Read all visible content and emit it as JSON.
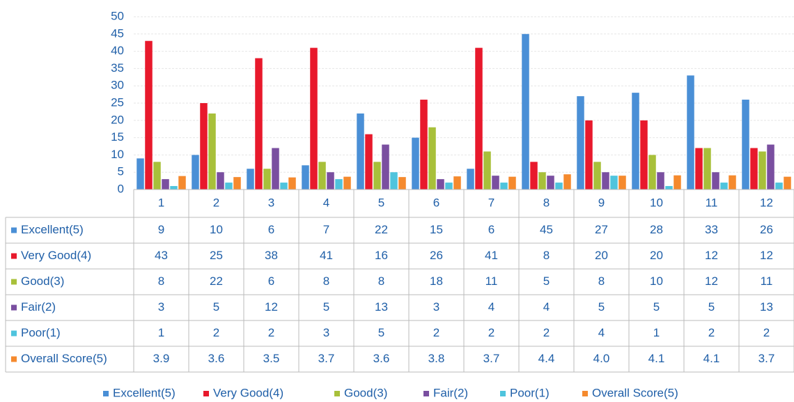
{
  "chart_data": {
    "type": "bar",
    "categories": [
      "1",
      "2",
      "3",
      "4",
      "5",
      "6",
      "7",
      "8",
      "9",
      "10",
      "11",
      "12"
    ],
    "series": [
      {
        "name": "Excellent(5)",
        "color": "#4a8fd6",
        "values": [
          9,
          10,
          6,
          7,
          22,
          15,
          6,
          45,
          27,
          28,
          33,
          26
        ]
      },
      {
        "name": "Very Good(4)",
        "color": "#e8192c",
        "values": [
          43,
          25,
          38,
          41,
          16,
          26,
          41,
          8,
          20,
          20,
          12,
          12
        ]
      },
      {
        "name": "Good(3)",
        "color": "#a8c03a",
        "values": [
          8,
          22,
          6,
          8,
          8,
          18,
          11,
          5,
          8,
          10,
          12,
          11
        ]
      },
      {
        "name": "Fair(2)",
        "color": "#7a4fa0",
        "values": [
          3,
          5,
          12,
          5,
          13,
          3,
          4,
          4,
          5,
          5,
          5,
          13
        ]
      },
      {
        "name": "Poor(1)",
        "color": "#4fc4dd",
        "values": [
          1,
          2,
          2,
          3,
          5,
          2,
          2,
          2,
          4,
          1,
          2,
          2
        ]
      },
      {
        "name": "Overall Score(5)",
        "color": "#f58a2e",
        "values": [
          3.9,
          3.6,
          3.5,
          3.7,
          3.6,
          3.8,
          3.7,
          4.4,
          4.0,
          4.1,
          4.1,
          3.7
        ],
        "value_labels": [
          "3.9",
          "3.6",
          "3.5",
          "3.7",
          "3.6",
          "3.8",
          "3.7",
          "4.4",
          "4.0",
          "4.1",
          "4.1",
          "3.7"
        ]
      }
    ],
    "ylim": [
      0,
      50
    ],
    "yticks": [
      0,
      5,
      10,
      15,
      20,
      25,
      30,
      35,
      40,
      45,
      50
    ],
    "grid": true
  }
}
